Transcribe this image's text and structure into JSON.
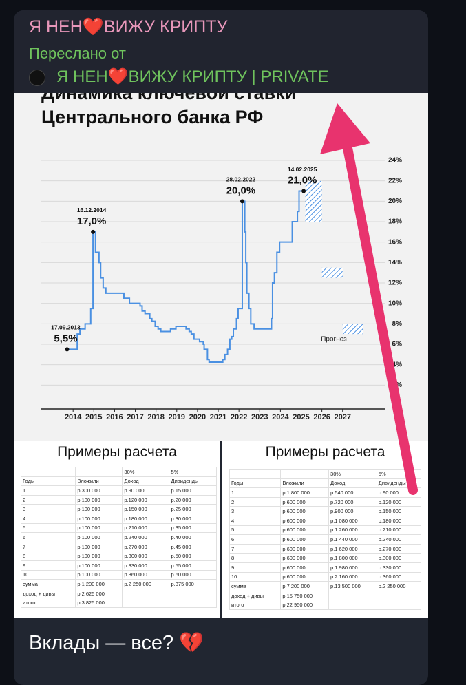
{
  "message": {
    "channel": "Я НЕН❤️ВИЖУ КРИПТУ",
    "forwarded_label": "Переслано от",
    "forwarded_from": "Я НЕН❤️ВИЖУ КРИПТУ | PRIVATE",
    "caption": "Вклады — все? 💔"
  },
  "chart_data": {
    "type": "line",
    "title": [
      "Динамика ключевой ставки",
      "Центрального банка РФ"
    ],
    "xlim": [
      2012.5,
      2029
    ],
    "xticks": [
      2014,
      2015,
      2016,
      2017,
      2018,
      2019,
      2020,
      2021,
      2022,
      2023,
      2024,
      2025,
      2026,
      2027
    ],
    "ylim": [
      0,
      24
    ],
    "yticks": [
      {
        "value": 2,
        "label": "2%"
      },
      {
        "value": 4,
        "label": "4%"
      },
      {
        "value": 6,
        "label": "6%"
      },
      {
        "value": 8,
        "label": "8%"
      },
      {
        "value": 10,
        "label": "10%"
      },
      {
        "value": 12,
        "label": "12%"
      },
      {
        "value": 14,
        "label": "14%"
      },
      {
        "value": 16,
        "label": "16%"
      },
      {
        "value": 18,
        "label": "18%"
      },
      {
        "value": 20,
        "label": "20%"
      },
      {
        "value": 22,
        "label": "22%"
      },
      {
        "value": 24,
        "label": "24%"
      }
    ],
    "grid": true,
    "step": "post",
    "series": [
      {
        "color": "#4a90e2",
        "x": [
          2013.71,
          2014.2,
          2014.33,
          2014.58,
          2014.85,
          2014.96,
          2015.08,
          2015.25,
          2015.33,
          2015.45,
          2015.58,
          2016.45,
          2016.72,
          2017.23,
          2017.33,
          2017.47,
          2017.7,
          2017.8,
          2017.96,
          2018.1,
          2018.23,
          2018.7,
          2018.96,
          2019.45,
          2019.6,
          2019.7,
          2019.83,
          2020.1,
          2020.28,
          2020.32,
          2020.48,
          2020.56,
          2021.22,
          2021.32,
          2021.45,
          2021.56,
          2021.65,
          2021.73,
          2021.88,
          2021.96,
          2022.16,
          2022.28,
          2022.33,
          2022.38,
          2022.48,
          2022.57,
          2022.73,
          2023.57,
          2023.62,
          2023.71,
          2023.83,
          2023.96,
          2024.57,
          2024.82,
          2024.9,
          2025.1
        ],
        "values": [
          5.5,
          7,
          7.5,
          8,
          9.5,
          17,
          15,
          14,
          12.5,
          11.5,
          11,
          10.5,
          10,
          9.75,
          9.25,
          9,
          8.5,
          8.25,
          7.75,
          7.5,
          7.25,
          7.5,
          7.75,
          7.5,
          7.25,
          7,
          6.5,
          6.25,
          6,
          5.5,
          4.5,
          4.25,
          4.5,
          5,
          5.5,
          6.5,
          6.75,
          7.5,
          8.5,
          9.5,
          20,
          17,
          14,
          11,
          9.5,
          8,
          7.5,
          8.5,
          12,
          13,
          15,
          16,
          18,
          19,
          21,
          21
        ]
      }
    ],
    "annotations": [
      {
        "date": "17.09.2013",
        "label": "5,5%",
        "x": 2013.71,
        "value": 5.5
      },
      {
        "date": "16.12.2014",
        "label": "17,0%",
        "x": 2014.96,
        "value": 17
      },
      {
        "date": "28.02.2022",
        "label": "20,0%",
        "x": 2022.16,
        "value": 20
      },
      {
        "date": "14.02.2025",
        "label": "21,0%",
        "x": 2025.12,
        "value": 21
      }
    ],
    "forecast_label": "Прогноз",
    "forecast": [
      {
        "x": [
          2025.2,
          2026.0
        ],
        "range": [
          18,
          22
        ]
      },
      {
        "x": [
          2026.0,
          2027.0
        ],
        "range": [
          12.5,
          13.5
        ]
      },
      {
        "x": [
          2027.0,
          2028.0
        ],
        "range": [
          7,
          8
        ]
      }
    ]
  },
  "tables": [
    {
      "title": "Примеры расчета",
      "rates": [
        "30%",
        "5%"
      ],
      "header": [
        "Годы",
        "Вложили",
        "Доход",
        "Дивиденды"
      ],
      "rows": [
        [
          "1",
          "р.300 000",
          "р.90 000",
          "р.15 000"
        ],
        [
          "2",
          "р.100 000",
          "р.120 000",
          "р.20 000"
        ],
        [
          "3",
          "р.100 000",
          "р.150 000",
          "р.25 000"
        ],
        [
          "4",
          "р.100 000",
          "р.180 000",
          "р.30 000"
        ],
        [
          "5",
          "р.100 000",
          "р.210 000",
          "р.35 000"
        ],
        [
          "6",
          "р.100 000",
          "р.240 000",
          "р.40 000"
        ],
        [
          "7",
          "р.100 000",
          "р.270 000",
          "р.45 000"
        ],
        [
          "8",
          "р.100 000",
          "р.300 000",
          "р.50 000"
        ],
        [
          "9",
          "р.100 000",
          "р.330 000",
          "р.55 000"
        ],
        [
          "10",
          "р.100 000",
          "р.360 000",
          "р.60 000"
        ],
        [
          "сумма",
          "р.1 200 000",
          "р.2 250 000",
          "р.375 000"
        ],
        [
          "доход + дивы",
          "р.2 625 000"
        ],
        [
          "итого",
          "р.3 825 000"
        ]
      ]
    },
    {
      "title": "Примеры расчета",
      "rates": [
        "30%",
        "5%"
      ],
      "header": [
        "Годы",
        "Вложили",
        "Доход",
        "Дивиденды"
      ],
      "rows": [
        [
          "1",
          "р.1 800 000",
          "р.540 000",
          "р.90 000"
        ],
        [
          "2",
          "р.600 000",
          "р.720 000",
          "р.120 000"
        ],
        [
          "3",
          "р.600 000",
          "р.900 000",
          "р.150 000"
        ],
        [
          "4",
          "р.600 000",
          "р.1 080 000",
          "р.180 000"
        ],
        [
          "5",
          "р.600 000",
          "р.1 260 000",
          "р.210 000"
        ],
        [
          "6",
          "р.600 000",
          "р.1 440 000",
          "р.240 000"
        ],
        [
          "7",
          "р.600 000",
          "р.1 620 000",
          "р.270 000"
        ],
        [
          "8",
          "р.600 000",
          "р.1 800 000",
          "р.300 000"
        ],
        [
          "9",
          "р.600 000",
          "р.1 980 000",
          "р.330 000"
        ],
        [
          "10",
          "р.600 000",
          "р.2 160 000",
          "р.360 000"
        ],
        [
          "сумма",
          "р.7 200 000",
          "р.13 500 000",
          "р.2 250 000"
        ],
        [
          "доход + дивы",
          "р.15 750 000"
        ],
        [
          "итого",
          "р.22 950 000"
        ]
      ]
    }
  ]
}
